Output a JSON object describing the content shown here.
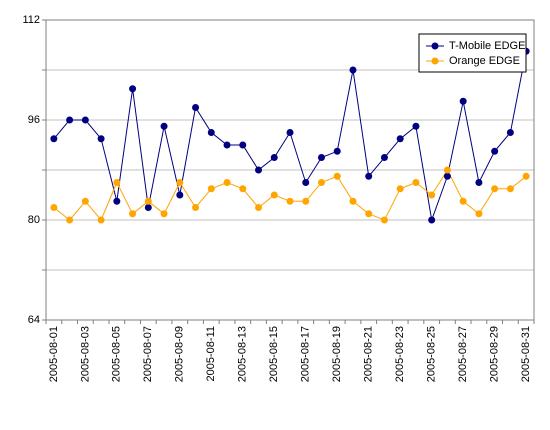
{
  "chart_data": {
    "type": "line",
    "title": "",
    "xlabel": "",
    "ylabel": "",
    "ylim": [
      64,
      112
    ],
    "y_ticks_labeled": [
      64,
      80,
      96,
      112
    ],
    "grid": "horizontal",
    "legend_position": "top-right",
    "x": [
      "2005-08-01",
      "2005-08-02",
      "2005-08-03",
      "2005-08-04",
      "2005-08-05",
      "2005-08-06",
      "2005-08-07",
      "2005-08-08",
      "2005-08-09",
      "2005-08-10",
      "2005-08-11",
      "2005-08-12",
      "2005-08-13",
      "2005-08-14",
      "2005-08-15",
      "2005-08-16",
      "2005-08-17",
      "2005-08-18",
      "2005-08-19",
      "2005-08-20",
      "2005-08-21",
      "2005-08-22",
      "2005-08-23",
      "2005-08-24",
      "2005-08-25",
      "2005-08-26",
      "2005-08-27",
      "2005-08-28",
      "2005-08-29",
      "2005-08-30",
      "2005-08-31"
    ],
    "x_tick_labels": [
      "2005-08-01",
      "2005-08-03",
      "2005-08-05",
      "2005-08-07",
      "2005-08-09",
      "2005-08-11",
      "2005-08-13",
      "2005-08-15",
      "2005-08-17",
      "2005-08-19",
      "2005-08-21",
      "2005-08-23",
      "2005-08-25",
      "2005-08-27",
      "2005-08-29",
      "2005-08-31"
    ],
    "series": [
      {
        "name": "T-Mobile EDGE",
        "color": "#000080",
        "values": [
          93,
          96,
          96,
          93,
          83,
          101,
          82,
          95,
          84,
          98,
          94,
          92,
          92,
          88,
          90,
          94,
          86,
          90,
          91,
          104,
          87,
          90,
          93,
          95,
          80,
          87,
          99,
          86,
          91,
          94,
          107
        ]
      },
      {
        "name": "Orange EDGE",
        "color": "#ffa500",
        "values": [
          82,
          80,
          83,
          80,
          86,
          81,
          83,
          81,
          86,
          82,
          85,
          86,
          85,
          82,
          84,
          83,
          83,
          86,
          87,
          83,
          81,
          80,
          85,
          86,
          84,
          88,
          83,
          81,
          85,
          85,
          87
        ]
      }
    ]
  }
}
